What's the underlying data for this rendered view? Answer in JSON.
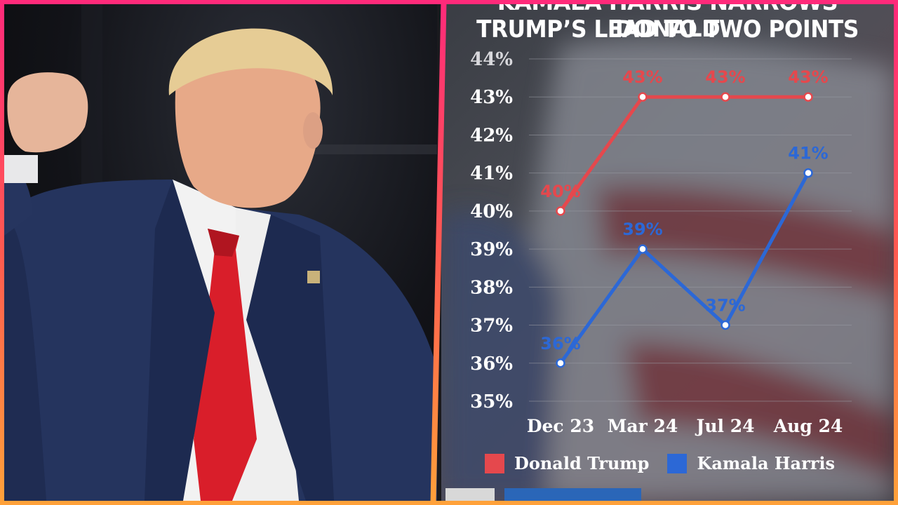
{
  "headline": {
    "line1": "KAMALA HARRIS NARROWS DONALD",
    "line2": "TRUMP’S LEAD TO TWO POINTS"
  },
  "colors": {
    "trump": "#e5484d",
    "harris": "#2c68d6",
    "accent_frame": "#ff2a7a"
  },
  "chart_data": {
    "type": "line",
    "title": "KAMALA HARRIS NARROWS DONALD TRUMP’S LEAD TO TWO POINTS",
    "categories": [
      "Dec 23",
      "Mar 24",
      "Jul 24",
      "Aug 24"
    ],
    "y_ticks": [
      "44%",
      "43%",
      "42%",
      "41%",
      "40%",
      "39%",
      "38%",
      "37%",
      "36%",
      "35%"
    ],
    "ylim": [
      35,
      44
    ],
    "grid": true,
    "legend_position": "bottom",
    "series": [
      {
        "name": "Donald Trump",
        "color": "#e5484d",
        "values": [
          40,
          43,
          43,
          43
        ],
        "labels": [
          "40%",
          "43%",
          "43%",
          "43%"
        ]
      },
      {
        "name": "Kamala Harris",
        "color": "#2c68d6",
        "values": [
          36,
          39,
          37,
          41
        ],
        "labels": [
          "36%",
          "39%",
          "37%",
          "41%"
        ]
      }
    ]
  }
}
